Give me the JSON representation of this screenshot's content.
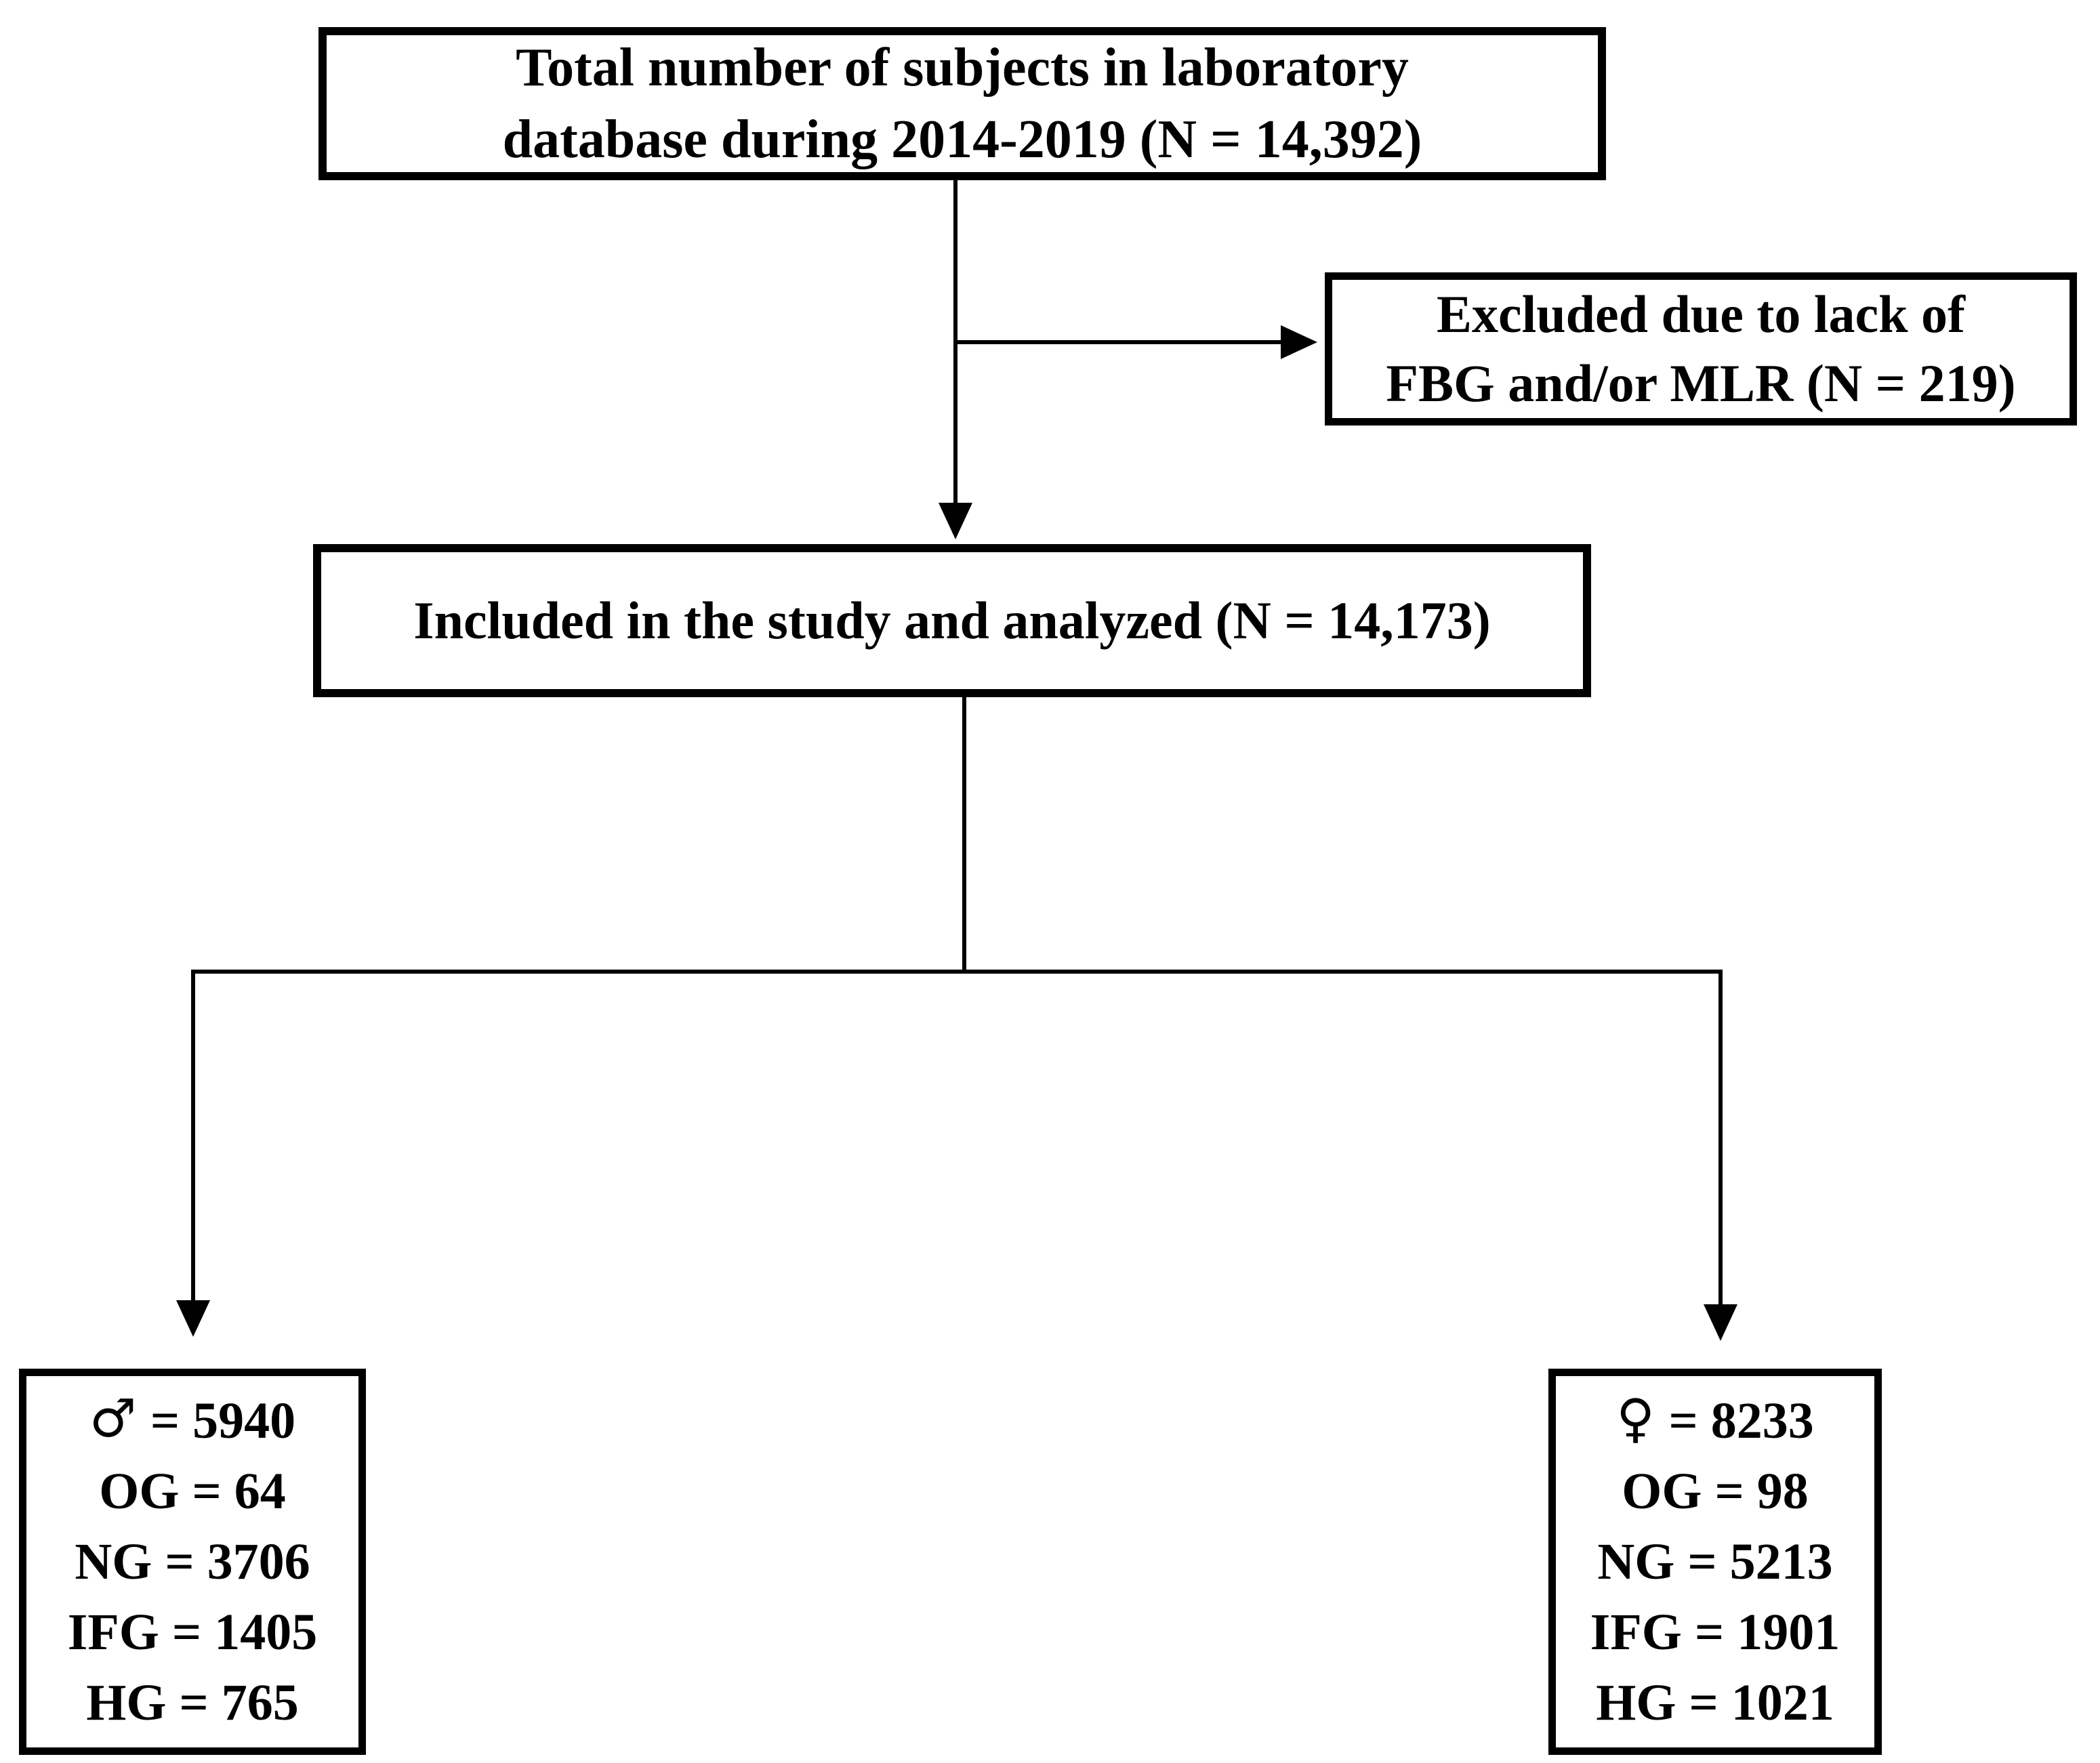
{
  "diagram": {
    "type": "study-flowchart",
    "colors": {
      "background": "#ffffff",
      "line": "#000000",
      "text": "#000000"
    },
    "nodes": {
      "total": {
        "line1": "Total number of subjects in laboratory",
        "line2": "database during 2014-2019 (N = 14,392)"
      },
      "excluded": {
        "line1": "Excluded due to lack of",
        "line2": "FBG and/or MLR (N = 219)"
      },
      "included": {
        "line1": "Included in the study and analyzed (N = 14,173)"
      },
      "male": {
        "symbol": "♂",
        "count": "= 5940",
        "rows": [
          "OG = 64",
          "NG = 3706",
          "IFG = 1405",
          "HG = 765"
        ]
      },
      "female": {
        "symbol": "♀",
        "count": "= 8233",
        "rows": [
          "OG = 98",
          "NG = 5213",
          "IFG = 1901",
          "HG = 1021"
        ]
      }
    },
    "edges": [
      {
        "from": "total",
        "to": "included",
        "style": "arrow"
      },
      {
        "from": "total",
        "to": "excluded",
        "style": "arrow"
      },
      {
        "from": "included",
        "to": "male",
        "style": "arrow"
      },
      {
        "from": "included",
        "to": "female",
        "style": "arrow"
      }
    ]
  }
}
